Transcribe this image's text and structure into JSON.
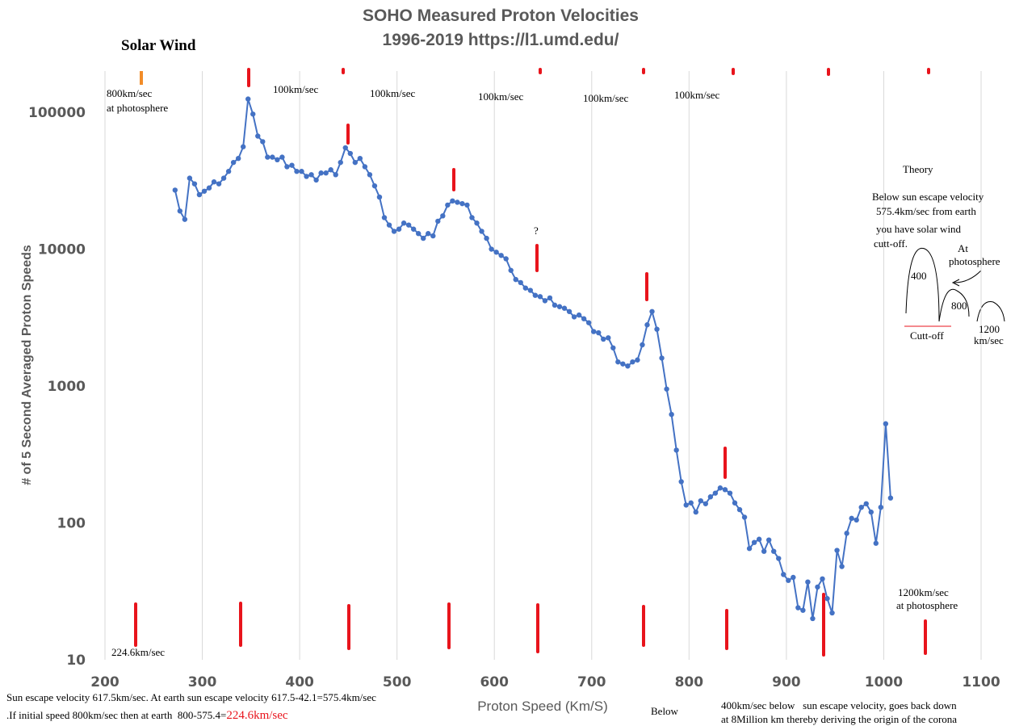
{
  "chart_data": {
    "type": "line",
    "title": "SOHO Measured Proton Velocities",
    "subtitle": "1996-2019 https://l1.umd.edu/",
    "corner_label": "Solar Wind",
    "x_label": "Proton Speed (Km/S)",
    "y_label": "# of 5 Second Averaged Proton Speeds",
    "xlim": [
      200,
      1100
    ],
    "xticks": [
      200,
      300,
      400,
      500,
      600,
      700,
      800,
      900,
      1000,
      1100
    ],
    "ylim": [
      10,
      200000
    ],
    "yticks": [
      10,
      100,
      1000,
      10000,
      100000
    ],
    "log_y": true,
    "grid": "x",
    "series": [
      {
        "color": "#4472c4",
        "x": [
          272,
          277,
          282,
          287,
          292,
          297,
          302,
          307,
          312,
          317,
          322,
          327,
          332,
          337,
          342,
          347,
          352,
          357,
          362,
          367,
          372,
          377,
          382,
          387,
          392,
          397,
          402,
          407,
          412,
          417,
          422,
          427,
          432,
          437,
          442,
          447,
          452,
          457,
          462,
          467,
          472,
          477,
          482,
          487,
          492,
          497,
          502,
          507,
          512,
          517,
          522,
          527,
          532,
          537,
          542,
          547,
          552,
          557,
          562,
          567,
          572,
          577,
          582,
          587,
          592,
          597,
          602,
          607,
          612,
          617,
          622,
          627,
          632,
          637,
          642,
          647,
          652,
          657,
          662,
          667,
          672,
          677,
          682,
          687,
          692,
          697,
          702,
          707,
          712,
          717,
          722,
          727,
          732,
          737,
          742,
          747,
          752,
          757,
          762,
          767,
          772,
          777,
          782,
          787,
          792,
          797,
          802,
          807,
          812,
          817,
          822,
          827,
          832,
          837,
          842,
          847,
          852,
          857,
          862,
          867,
          872,
          877,
          882,
          887,
          892,
          897,
          902,
          907,
          912,
          917,
          922,
          927,
          932,
          937,
          942,
          947,
          952,
          957,
          962,
          967,
          972,
          977,
          982,
          987,
          992,
          997,
          1002,
          1007
        ],
        "values": [
          27000,
          19000,
          16500,
          33000,
          30000,
          25000,
          26500,
          28000,
          31000,
          30000,
          33000,
          37000,
          43000,
          46000,
          56000,
          125000,
          97000,
          67000,
          61000,
          47000,
          47000,
          45000,
          47000,
          40000,
          41000,
          37000,
          37000,
          34000,
          35000,
          32000,
          36000,
          36000,
          38000,
          35000,
          43000,
          55000,
          50000,
          43000,
          46000,
          40000,
          35000,
          29000,
          24000,
          17000,
          15000,
          13500,
          14000,
          15500,
          15000,
          14000,
          13000,
          12000,
          13000,
          12500,
          16000,
          17500,
          21000,
          22500,
          22000,
          21500,
          21000,
          17000,
          15500,
          13500,
          12000,
          10000,
          9500,
          9000,
          8500,
          7000,
          6000,
          5700,
          5200,
          5000,
          4600,
          4500,
          4200,
          4400,
          3900,
          3800,
          3700,
          3500,
          3200,
          3300,
          3100,
          2900,
          2500,
          2450,
          2200,
          2250,
          1900,
          1500,
          1450,
          1400,
          1500,
          1550,
          2000,
          2800,
          3500,
          2600,
          1600,
          950,
          620,
          340,
          200,
          135,
          140,
          120,
          145,
          138,
          155,
          165,
          180,
          175,
          165,
          140,
          125,
          110,
          65,
          72,
          76,
          62,
          75,
          62,
          55,
          42,
          38,
          40,
          24,
          23,
          37,
          20,
          34,
          39,
          28,
          22,
          63,
          48,
          84,
          108,
          105,
          130,
          138,
          120,
          71,
          130,
          530,
          152
        ]
      }
    ],
    "annotations": [
      "800km/sec",
      "at photosphere",
      "100km/sec",
      "100km/sec",
      "100km/sec",
      "100km/sec",
      "100km/sec",
      "?",
      "Theory",
      "Below sun escape velocity",
      "575.4km/sec from earth",
      "you have solar wind",
      "cutt-off.",
      "At",
      "photosphere",
      "400",
      "800",
      "1200",
      "km/sec",
      "Cutt-off",
      "1200km/sec",
      "at photosphere",
      "224.6km/sec",
      "Sun escape velocity 617.5km/sec. At earth sun escape velocity 617.5-42.1=575.4km/sec",
      ".If initial speed 800km/sec then at earth  800-575.4=",
      "224.6km/sec",
      "Below",
      "400km/sec below   sun escape velocity, goes back down",
      "at 8Million km thereby deriving the origin of the corona"
    ]
  }
}
